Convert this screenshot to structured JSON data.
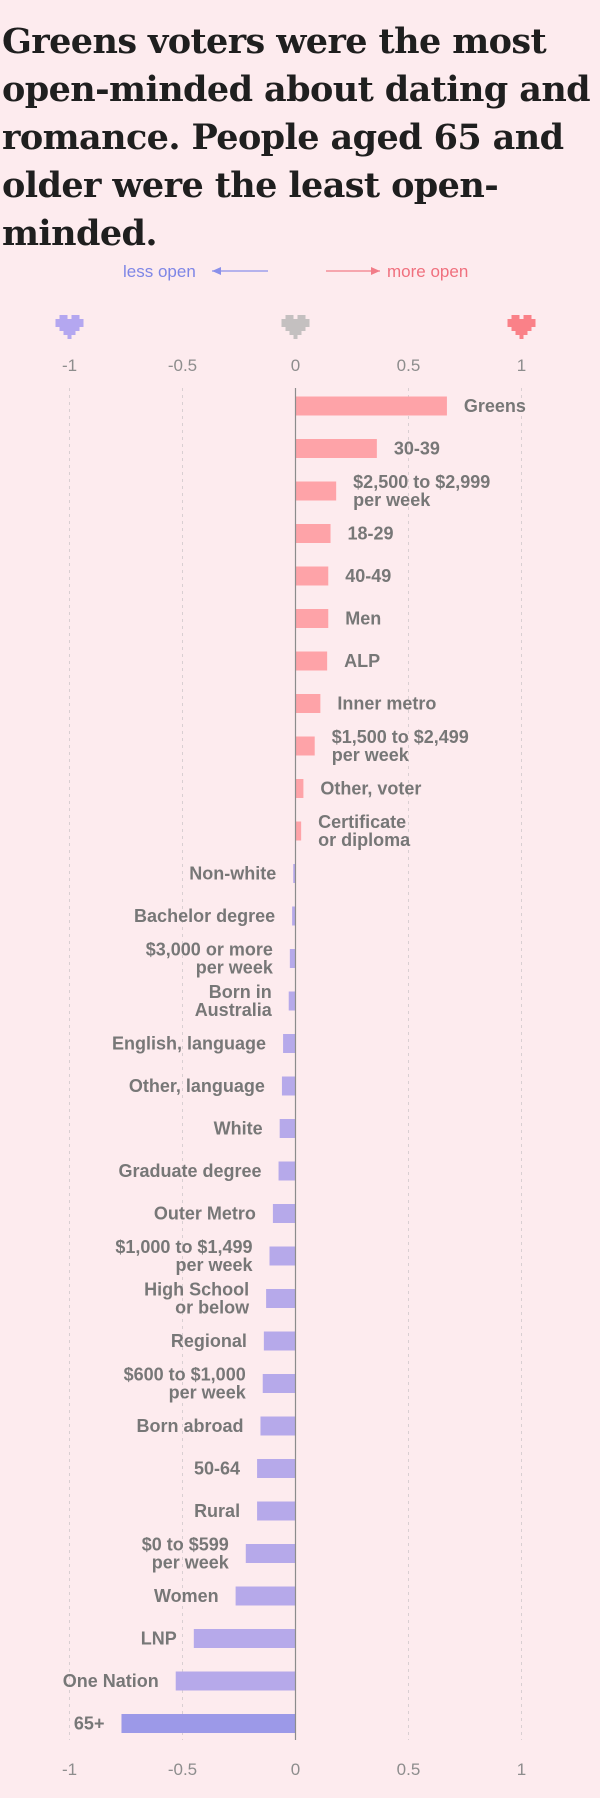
{
  "title": "Greens voters were the most open-minded about dating and romance. People aged 65 and older were the least open-minded.",
  "direction": {
    "left_label": "less open",
    "right_label": "more open"
  },
  "colors": {
    "positive": "#fea3a8",
    "negative": "#b6a9ea",
    "negative_strong": "#9c99e8",
    "axis": "#8c8c8c",
    "grid": "#d9cfd2",
    "heart_left": "#b4a7f0",
    "heart_center": "#c4c0c0",
    "heart_right": "#fa8188"
  },
  "icons": [
    "heart-icon-left",
    "heart-icon-center",
    "heart-icon-right",
    "arrow-left-icon",
    "arrow-right-icon"
  ],
  "chart_data": {
    "type": "bar",
    "orientation": "horizontal",
    "xlim": [
      -1,
      1
    ],
    "x_ticks": [
      "-1",
      "-0.5",
      "0",
      "0.5",
      "1"
    ],
    "grid": true,
    "categories": [
      "Greens",
      "30-39",
      "$2,500 to $2,999\nper week",
      "18-29",
      "40-49",
      "Men",
      "ALP",
      "Inner metro",
      "$1,500 to $2,499\nper week",
      "Other, voter",
      "Certificate\nor diploma",
      "Non-white",
      "Bachelor degree",
      "$3,000 or more\nper week",
      "Born in\nAustralia",
      "English, language",
      "Other, language",
      "White",
      "Graduate degree",
      "Outer Metro",
      "$1,000 to $1,499\nper week",
      "High School\nor below",
      "Regional",
      "$600 to $1,000\nper week",
      "Born abroad",
      "50-64",
      "Rural",
      "$0 to $599\nper week",
      "Women",
      "LNP",
      "One Nation",
      "65+"
    ],
    "values": [
      0.67,
      0.36,
      0.18,
      0.155,
      0.145,
      0.145,
      0.14,
      0.11,
      0.085,
      0.035,
      0.025,
      -0.01,
      -0.015,
      -0.025,
      -0.03,
      -0.055,
      -0.06,
      -0.07,
      -0.075,
      -0.1,
      -0.115,
      -0.13,
      -0.14,
      -0.145,
      -0.155,
      -0.17,
      -0.17,
      -0.22,
      -0.265,
      -0.45,
      -0.53,
      -0.77
    ]
  }
}
